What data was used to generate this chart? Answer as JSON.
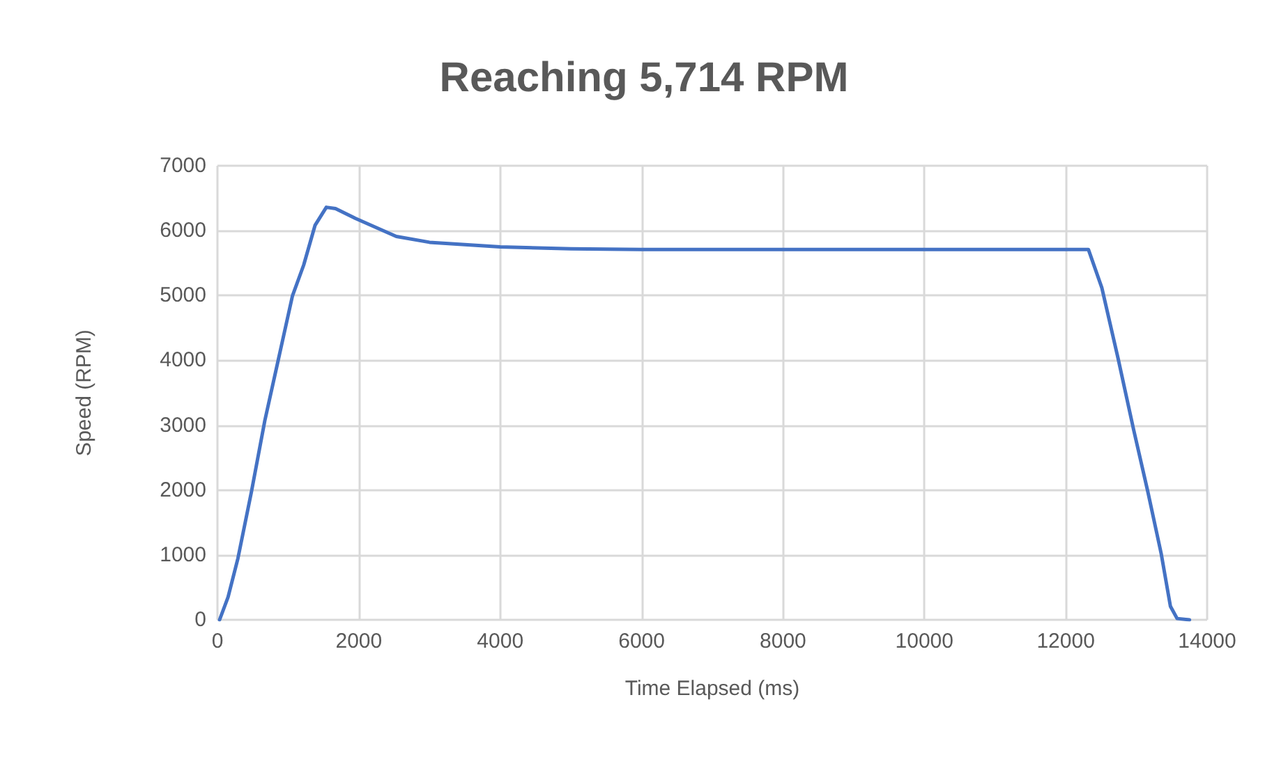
{
  "chart_data": {
    "type": "line",
    "title": "Reaching 5,714 RPM",
    "xlabel": "Time Elapsed (ms)",
    "ylabel": "Speed (RPM)",
    "x": [
      30,
      150,
      290,
      480,
      670,
      865,
      1060,
      1220,
      1380,
      1540,
      1670,
      1950,
      2530,
      3000,
      4000,
      5000,
      6000,
      8000,
      10000,
      12000,
      12320,
      12510,
      12740,
      12960,
      13160,
      13350,
      13480,
      13575,
      13750
    ],
    "series": [
      {
        "color": "#4472c4",
        "values": [
          0,
          350,
          950,
          1970,
          3070,
          4030,
          4990,
          5470,
          6080,
          6360,
          6340,
          6190,
          5910,
          5820,
          5750,
          5720,
          5710,
          5710,
          5710,
          5710,
          5710,
          5120,
          4030,
          2930,
          1980,
          1020,
          210,
          20,
          0
        ]
      }
    ],
    "xlim": [
      0,
      14000
    ],
    "xticks": [
      0,
      2000,
      4000,
      6000,
      8000,
      10000,
      12000,
      14000
    ],
    "ylim": [
      0,
      7000
    ],
    "yticks": [
      0,
      1000,
      2000,
      3000,
      4000,
      5000,
      6000,
      7000
    ],
    "grid": true,
    "marker": "none",
    "line_style": "solid"
  }
}
